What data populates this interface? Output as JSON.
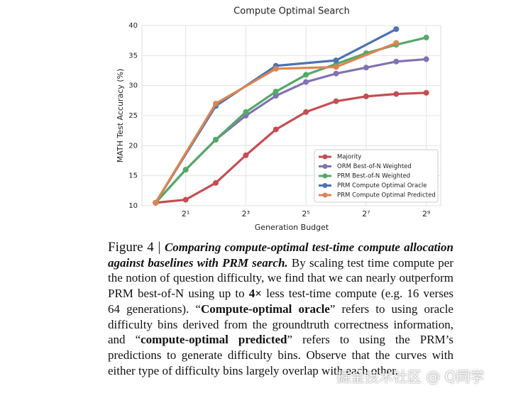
{
  "chart_data": {
    "type": "line",
    "title": "Compute Optimal Search",
    "x_label": "Generation Budget",
    "y_label": "MATH Test Accuracy (%)",
    "log_x": true,
    "log_base": 2,
    "grid": true,
    "legend_position": "lower right",
    "xlim": [
      0.73,
      714
    ],
    "ylim": [
      10,
      40
    ],
    "xticks": [
      {
        "value": 2,
        "label": "2¹"
      },
      {
        "value": 8,
        "label": "2³"
      },
      {
        "value": 32,
        "label": "2⁵"
      },
      {
        "value": 128,
        "label": "2⁷"
      },
      {
        "value": 512,
        "label": "2⁹"
      }
    ],
    "yticks": [
      10,
      15,
      20,
      25,
      30,
      35,
      40
    ],
    "series": [
      {
        "name": "Majority",
        "color": "#c44e52",
        "x": [
          1,
          2,
          4,
          8,
          16,
          32,
          64,
          128,
          256,
          512
        ],
        "values": [
          10.5,
          11,
          13.8,
          18.4,
          22.7,
          25.6,
          27.4,
          28.2,
          28.6,
          28.8
        ]
      },
      {
        "name": "ORM Best-of-N Weighted",
        "color": "#8172b2",
        "x": [
          1,
          2,
          4,
          8,
          16,
          32,
          64,
          128,
          256,
          512
        ],
        "values": [
          10.5,
          16,
          21,
          25,
          28.3,
          30.6,
          32,
          33,
          34,
          34.4
        ]
      },
      {
        "name": "PRM Best-of-N Weighted",
        "color": "#55a868",
        "x": [
          1,
          2,
          4,
          8,
          16,
          32,
          64,
          128,
          256,
          512
        ],
        "values": [
          10.5,
          16,
          21,
          25.6,
          29,
          31.8,
          33.6,
          35.4,
          36.8,
          38
        ]
      },
      {
        "name": "PRM Compute Optimal Oracle",
        "color": "#4c72b0",
        "x": [
          1,
          4,
          16,
          64,
          256
        ],
        "values": [
          10.5,
          26.6,
          33.3,
          34.2,
          39.4
        ]
      },
      {
        "name": "PRM Compute Optimal Predicted",
        "color": "#dd8452",
        "x": [
          1,
          4,
          16,
          64,
          256
        ],
        "values": [
          10.5,
          27,
          32.8,
          33.1,
          37.1
        ]
      }
    ]
  },
  "caption": {
    "runs": [
      {
        "text": "Figure 4 | ",
        "style": "label"
      },
      {
        "text": "Comparing compute-optimal test-time compute allocation against baselines with PRM search.",
        "style": "bold-italic"
      },
      {
        "text": " By scaling test time compute per the notion of question difficulty, we find that we can nearly outperform PRM best-of-N using up to ",
        "style": "normal"
      },
      {
        "text": "4×",
        "style": "bold"
      },
      {
        "text": " less test-time compute (e.g. 16 verses 64 generations). “",
        "style": "normal"
      },
      {
        "text": "Compute-optimal oracle",
        "style": "bold"
      },
      {
        "text": "” refers to using oracle difficulty bins derived from the groundtruth correctness information, and “",
        "style": "normal"
      },
      {
        "text": "compute-optimal predicted",
        "style": "bold"
      },
      {
        "text": "” refers to using the PRM’s predictions to generate difficulty bins. Observe that the curves with either type of difficulty bins largely overlap with each other.",
        "style": "normal"
      }
    ]
  },
  "watermark": "掘金技术社区 @ Q同学"
}
